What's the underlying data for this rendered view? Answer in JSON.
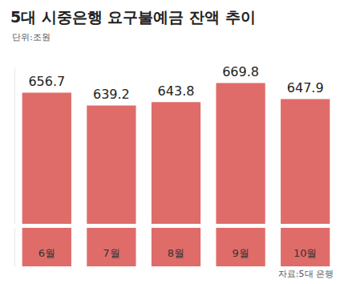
{
  "chart_data": {
    "type": "bar",
    "title": "5대 시중은행 요구불예금 잔액 추이",
    "subtitle": "단위:조원",
    "source": "자료:5대 은행",
    "categories": [
      "6월",
      "7월",
      "8월",
      "9월",
      "10월"
    ],
    "values": [
      656.7,
      639.2,
      643.8,
      669.8,
      647.9
    ],
    "color": "#e06c6a",
    "ylim": [
      420,
      690
    ],
    "data_labels": true,
    "tick_labels": "x",
    "grid": false
  }
}
